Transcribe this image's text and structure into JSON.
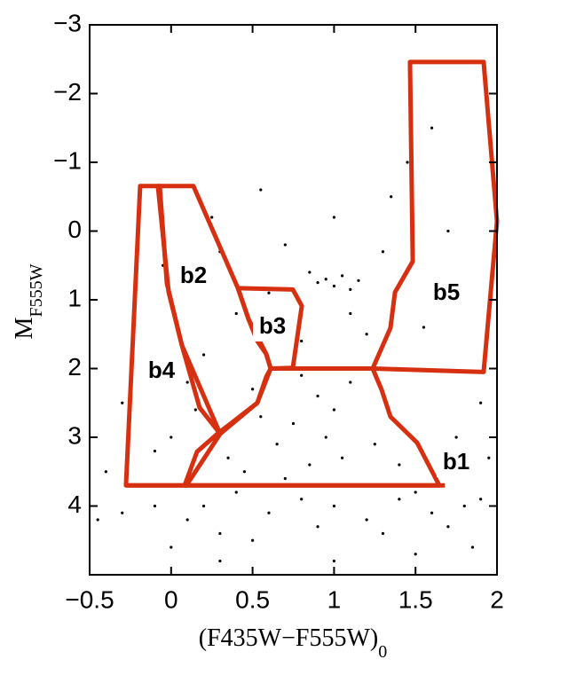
{
  "chart_data": {
    "type": "scatter",
    "xlabel": "(F435W−F555W)",
    "xlabel_sub": "0",
    "ylabel": "M",
    "ylabel_sub": "F555W",
    "xlim": [
      -0.5,
      2
    ],
    "ylim": [
      -3,
      5
    ],
    "y_inverted": true,
    "xticks": [
      {
        "value": -0.5,
        "label": "−0.5"
      },
      0,
      0.5,
      1,
      1.5,
      2
    ],
    "yticks": [
      {
        "value": -3,
        "label": "−3"
      },
      {
        "value": -2,
        "label": "−2"
      },
      {
        "value": -1,
        "label": "−1"
      },
      0,
      1,
      2,
      3,
      4
    ],
    "color": "#000000",
    "x": [
      0.2,
      0.4,
      0.6,
      0.8,
      1.0,
      1.2,
      1.4,
      1.6,
      1.8,
      0.3,
      0.5,
      0.7,
      0.9,
      1.1,
      1.3,
      1.5,
      1.7,
      1.9,
      0.1,
      -0.1,
      -0.3,
      0.0,
      0.45,
      0.85,
      1.05,
      0.95,
      0.75,
      1.0,
      0.9,
      1.1,
      0.8,
      0.65,
      1.25,
      0.55,
      0.35,
      1.4,
      0.95,
      1.0,
      1.05,
      0.9,
      1.1,
      0.85,
      1.15,
      1.2,
      1.3,
      1.35,
      1.45,
      1.0,
      0.8,
      1.1,
      1.6,
      1.7,
      1.55,
      1.9,
      1.75,
      1.95,
      0.0,
      0.05,
      -0.05,
      0.1,
      0.15,
      0.0,
      -0.1,
      0.2,
      0.3,
      0.4,
      0.5,
      0.25,
      -0.3,
      -0.4,
      -0.45,
      0.6,
      0.7,
      0.55,
      0.3,
      1.0,
      1.5,
      1.85
    ],
    "y": [
      4.0,
      3.8,
      4.1,
      3.9,
      4.0,
      4.2,
      3.9,
      4.1,
      4.0,
      4.4,
      4.5,
      3.6,
      4.3,
      3.7,
      4.4,
      3.8,
      4.3,
      3.9,
      4.2,
      4.0,
      4.1,
      4.6,
      3.5,
      3.4,
      3.3,
      3.0,
      2.8,
      2.6,
      2.4,
      2.2,
      2.1,
      3.1,
      3.1,
      2.7,
      3.3,
      3.4,
      0.7,
      0.8,
      0.65,
      0.75,
      0.85,
      0.6,
      0.72,
      1.5,
      0.3,
      -0.5,
      -1.0,
      -0.2,
      1.6,
      1.2,
      -1.5,
      0.0,
      1.4,
      2.5,
      3.0,
      3.3,
      1.0,
      1.5,
      0.5,
      2.2,
      2.6,
      3.0,
      3.2,
      1.8,
      0.3,
      1.2,
      2.3,
      -0.2,
      2.5,
      3.5,
      4.2,
      0.9,
      0.2,
      -0.6,
      4.8,
      4.8,
      4.7,
      4.6
    ],
    "region_color": "#d63011",
    "regions": [
      {
        "name": "b1",
        "x": [
          0.083,
          0.159,
          0.284,
          0.529,
          0.584,
          0.611,
          1.237,
          1.292,
          1.346,
          1.51,
          1.646
        ],
        "y": [
          3.7,
          3.21,
          2.95,
          2.5,
          2.12,
          2.0,
          2.0,
          2.31,
          2.7,
          3.08,
          3.7
        ]
      },
      {
        "name": "b2",
        "x": [
          -0.081,
          0.137,
          0.41,
          0.475,
          0.584,
          0.611,
          0.529,
          0.301,
          0.066,
          -0.015
        ],
        "y": [
          -0.655,
          -0.655,
          0.83,
          1.28,
          1.79,
          2.0,
          2.5,
          2.95,
          1.66,
          0.89
        ]
      },
      {
        "name": "b3",
        "x": [
          0.41,
          0.747,
          0.802,
          0.747,
          0.611,
          0.584,
          0.529,
          0.475
        ],
        "y": [
          0.83,
          0.85,
          1.09,
          1.99,
          2.0,
          1.79,
          1.6,
          1.28
        ]
      },
      {
        "name": "b4",
        "x": [
          -0.277,
          -0.19,
          -0.07,
          -0.026,
          0.066,
          0.175,
          0.301,
          0.094
        ],
        "y": [
          3.7,
          -0.655,
          -0.655,
          0.76,
          1.66,
          2.57,
          2.95,
          3.7
        ]
      },
      {
        "name": "b5",
        "x": [
          1.466,
          1.918,
          2.0,
          1.918,
          1.237,
          1.346,
          1.374,
          1.483
        ],
        "y": [
          -2.46,
          -2.46,
          -0.14,
          2.05,
          2.0,
          1.41,
          0.89,
          0.44
        ]
      }
    ],
    "base_line": {
      "x": [
        -0.277,
        1.68
      ],
      "y": [
        3.7,
        3.7
      ]
    }
  }
}
